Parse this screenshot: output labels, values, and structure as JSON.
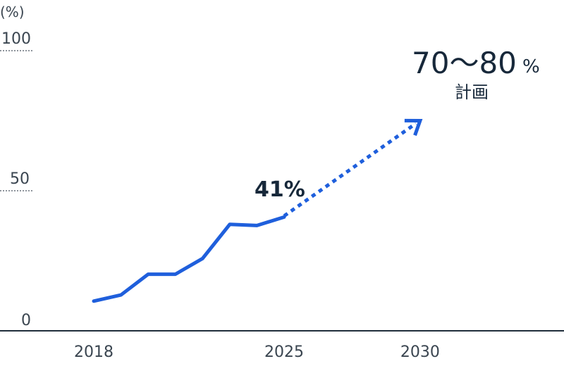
{
  "chart_data": {
    "type": "line",
    "y_unit": "(%)",
    "y_ticks": [
      "100",
      "50",
      "0"
    ],
    "y_tick_values": [
      100,
      50,
      0
    ],
    "ylim": [
      0,
      100
    ],
    "x_tick_labels": [
      "2018",
      "2025",
      "2030"
    ],
    "x_tick_values": [
      2018,
      2025,
      2030
    ],
    "xlim": [
      2016,
      2032
    ],
    "grid": "dotted lines at 50 and 100 near y axis only",
    "series": [
      {
        "style": "solid",
        "x": [
          2018,
          2019,
          2020,
          2021,
          2022,
          2023,
          2024,
          2025
        ],
        "values": [
          10.6,
          12.8,
          20.2,
          20.2,
          25.8,
          38.0,
          37.6,
          40.6
        ]
      },
      {
        "style": "dotted-projection",
        "x": [
          2025,
          2030
        ],
        "values": [
          41,
          75
        ]
      }
    ],
    "annotations": {
      "current_label": "41%",
      "target_main": "70〜80",
      "target_pct": "%",
      "target_note": "計画"
    }
  },
  "colors": {
    "line": "#1f5fdc",
    "axis": "#1f2d3a",
    "text": "#3a4550"
  }
}
